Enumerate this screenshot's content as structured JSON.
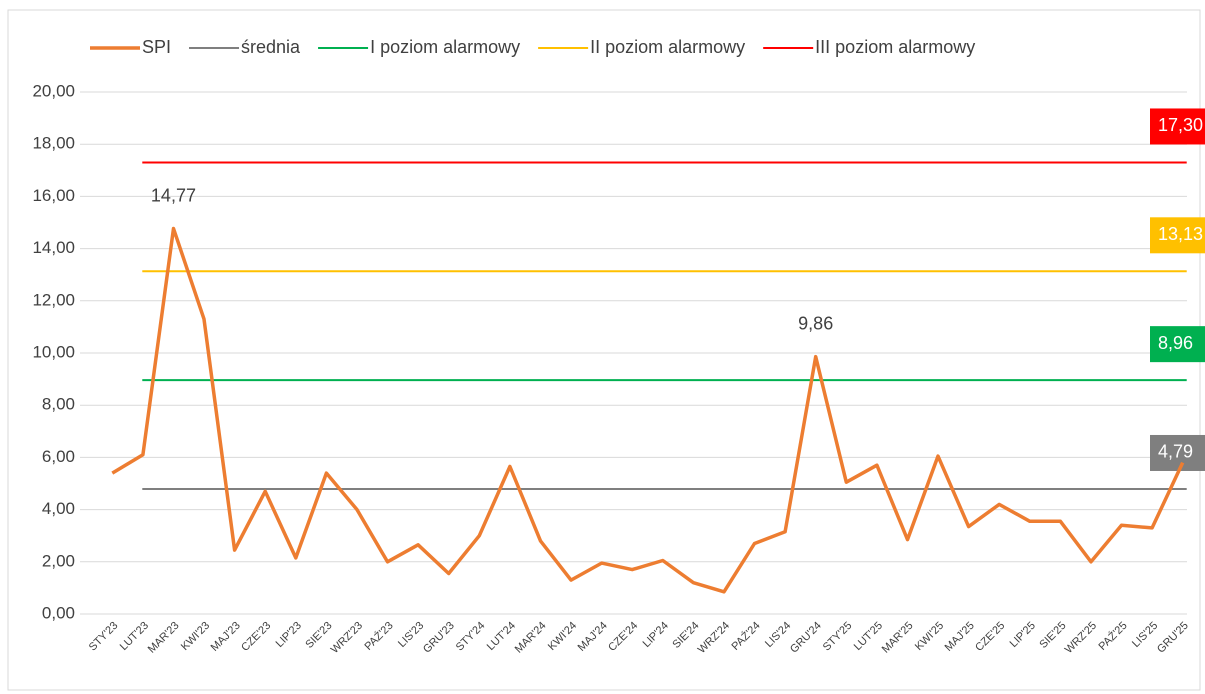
{
  "chart_data": {
    "type": "line",
    "categories": [
      "STY'23",
      "LUT'23",
      "MAR'23",
      "KWI'23",
      "MAJ'23",
      "CZE'23",
      "LIP'23",
      "SIE'23",
      "WRZ'23",
      "PAŹ'23",
      "LIS'23",
      "GRU'23",
      "STY'24",
      "LUT'24",
      "MAR'24",
      "KWI'24",
      "MAJ'24",
      "CZE'24",
      "LIP'24",
      "SIE'24",
      "WRZ'24",
      "PAŹ'24",
      "LIS'24",
      "GRU'24",
      "STY'25",
      "LUT'25",
      "MAR'25",
      "KWI'25",
      "MAJ'25",
      "CZE'25",
      "LIP'25",
      "SIE'25",
      "WRZ'25",
      "PAŹ'25",
      "LIS'25",
      "GRU'25"
    ],
    "series": [
      {
        "name": "SPI",
        "color": "#ed7d31",
        "values": [
          5.4,
          6.1,
          14.77,
          11.3,
          2.45,
          4.7,
          2.15,
          5.4,
          4.0,
          2.0,
          2.65,
          1.55,
          3.0,
          5.65,
          2.8,
          1.3,
          1.95,
          1.7,
          2.05,
          1.2,
          0.85,
          2.7,
          3.15,
          9.86,
          5.05,
          5.7,
          2.85,
          6.05,
          3.35,
          4.2,
          3.55,
          3.55,
          2.0,
          3.4,
          3.3,
          5.8
        ],
        "value_labels": [
          null,
          null,
          "14,77",
          null,
          null,
          null,
          null,
          null,
          null,
          null,
          null,
          null,
          null,
          null,
          null,
          null,
          null,
          null,
          null,
          null,
          null,
          null,
          null,
          "9,86",
          null,
          null,
          null,
          null,
          null,
          null,
          null,
          null,
          null,
          null,
          null,
          null
        ]
      }
    ],
    "reference_lines": [
      {
        "name": "średnia",
        "color": "#7f7f7f",
        "value": 4.79,
        "label": "4,79"
      },
      {
        "name": "I poziom alarmowy",
        "color": "#00b050",
        "value": 8.96,
        "label": "8,96"
      },
      {
        "name": "II poziom alarmowy",
        "color": "#ffc000",
        "value": 13.13,
        "label": "13,13"
      },
      {
        "name": "III poziom alarmowy",
        "color": "#ff0000",
        "value": 17.3,
        "label": "17,30"
      }
    ],
    "ylim": [
      0,
      20
    ],
    "yticks": [
      {
        "value": 0,
        "label": "0,00"
      },
      {
        "value": 2,
        "label": "2,00"
      },
      {
        "value": 4,
        "label": "4,00"
      },
      {
        "value": 6,
        "label": "6,00"
      },
      {
        "value": 8,
        "label": "8,00"
      },
      {
        "value": 10,
        "label": "10,00"
      },
      {
        "value": 12,
        "label": "12,00"
      },
      {
        "value": 14,
        "label": "14,00"
      },
      {
        "value": 16,
        "label": "16,00"
      },
      {
        "value": 18,
        "label": "18,00"
      },
      {
        "value": 20,
        "label": "20,00"
      }
    ],
    "grid": true
  }
}
